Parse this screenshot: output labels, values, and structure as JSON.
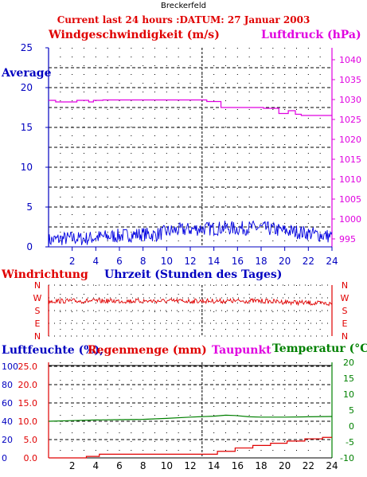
{
  "station": "Breckerfeld",
  "heading": "Current last 24 hours :DATUM: 27 Januar 2003",
  "colors": {
    "red": "#e00000",
    "magenta": "#e000e0",
    "blue": "#0000c0",
    "green": "#008000",
    "wind": "#0000e0"
  },
  "chart_data": [
    {
      "type": "line",
      "title": "",
      "xlabel": "Uhrzeit (Stunden des Tages)",
      "xlim": [
        0,
        24
      ],
      "x_ticks": [
        2,
        4,
        6,
        8,
        10,
        12,
        14,
        16,
        18,
        20,
        22,
        24
      ],
      "y_left_label": "Windgeschwindigkeit (m/s)",
      "y_left_ticks": [
        0,
        5,
        10,
        15,
        20,
        25
      ],
      "y_left_lim": [
        0,
        25
      ],
      "y_right_label": "Luftdruck (hPa)",
      "y_right_ticks": [
        995,
        1000,
        1005,
        1010,
        1015,
        1020,
        1025,
        1030,
        1035,
        1040
      ],
      "y_right_lim": [
        993,
        1043
      ],
      "extra_label": "Average",
      "current_time_marker": 13,
      "series": [
        {
          "name": "Windgeschwindigkeit (m/s)",
          "axis": "left",
          "x": [
            0,
            1,
            2,
            3,
            4,
            5,
            6,
            7,
            8,
            9,
            10,
            11,
            12,
            13,
            14,
            15,
            16,
            17,
            18,
            19,
            20,
            21,
            22,
            23,
            24
          ],
          "y": [
            0.8,
            1.0,
            1.1,
            1.0,
            1.2,
            1.3,
            1.4,
            1.5,
            1.6,
            1.5,
            1.9,
            2.1,
            2.2,
            2.3,
            2.3,
            2.4,
            2.3,
            2.4,
            2.4,
            2.2,
            2.0,
            1.9,
            1.7,
            1.5,
            1.3
          ]
        },
        {
          "name": "Luftdruck (hPa)",
          "axis": "right",
          "x": [
            0,
            0.6,
            0.6,
            2.4,
            2.4,
            3.4,
            3.4,
            3.8,
            3.8,
            4.6,
            4.6,
            13.4,
            13.4,
            14.6,
            14.6,
            18.2,
            18.2,
            19.5,
            19.5,
            20.3,
            20.3,
            20.9,
            20.9,
            21.4,
            21.4,
            24
          ],
          "y": [
            1029.8,
            1029.8,
            1029.4,
            1029.4,
            1029.8,
            1029.8,
            1029.4,
            1029.4,
            1029.8,
            1029.8,
            1029.9,
            1029.9,
            1029.5,
            1029.5,
            1028.0,
            1028.0,
            1027.8,
            1027.8,
            1026.5,
            1026.5,
            1027.2,
            1027.2,
            1026.3,
            1026.3,
            1026.0,
            1026.0
          ]
        }
      ]
    },
    {
      "type": "line",
      "title": "Windrichtung",
      "xlim": [
        0,
        24
      ],
      "y_ticks": [
        "N",
        "W",
        "S",
        "E",
        "N"
      ],
      "series": [
        {
          "name": "Windrichtung",
          "x": [
            0,
            2,
            4,
            6,
            8,
            10,
            12,
            13,
            14,
            16,
            18,
            19,
            20,
            22,
            24
          ],
          "y": [
            "W",
            "W",
            "W",
            "W",
            "W",
            "W",
            "W",
            "W",
            "W",
            "W",
            "W",
            "W",
            "W",
            "W",
            "W"
          ]
        }
      ]
    },
    {
      "type": "line",
      "xlim": [
        0,
        24
      ],
      "labels": [
        "Luftfeuchte (%),",
        "Regenmenge (mm)",
        "Taupunkt",
        "Temperatur (°C)"
      ],
      "y_left_ticks_humidity": [
        0,
        20,
        40,
        60,
        80,
        100
      ],
      "y_left_ticks_rain": [
        "0.0",
        "5.0",
        "10.0",
        "15.0",
        "20.0",
        "25.0"
      ],
      "y_left_lim_rain": [
        0,
        25
      ],
      "y_right_ticks": [
        -10,
        -5,
        0,
        5,
        10,
        15,
        20
      ],
      "y_right_lim": [
        -10,
        20
      ],
      "x_ticks": [
        2,
        4,
        6,
        8,
        10,
        12,
        14,
        16,
        18,
        20,
        22,
        24
      ],
      "current_time_marker": 13,
      "series": [
        {
          "name": "Temperatur (°C)",
          "axis": "right",
          "x": [
            0,
            2,
            4,
            6,
            8,
            10,
            12,
            14,
            15,
            15.8,
            17,
            18,
            20,
            22,
            24
          ],
          "y": [
            1.5,
            1.7,
            1.9,
            2.0,
            2.1,
            2.4,
            2.8,
            3.1,
            3.4,
            3.3,
            2.9,
            2.8,
            2.8,
            2.9,
            3.0
          ]
        },
        {
          "name": "Regenmenge (mm)",
          "axis": "left",
          "x": [
            0,
            3.2,
            3.2,
            4.3,
            4.3,
            14.3,
            14.3,
            15.8,
            15.8,
            17.3,
            17.3,
            18.8,
            18.8,
            20.2,
            20.2,
            21.7,
            21.7,
            23.2,
            23.2,
            24
          ],
          "y": [
            0,
            0,
            0.4,
            0.4,
            1.0,
            1.0,
            1.8,
            1.8,
            2.7,
            2.7,
            3.4,
            3.4,
            4.0,
            4.0,
            4.6,
            4.6,
            5.2,
            5.2,
            5.6,
            5.6
          ]
        }
      ]
    }
  ]
}
